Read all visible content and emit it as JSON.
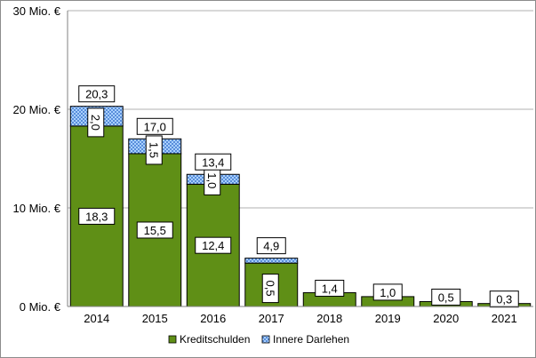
{
  "chart_data": {
    "type": "bar",
    "stacked": true,
    "categories": [
      "2014",
      "2015",
      "2016",
      "2017",
      "2018",
      "2019",
      "2020",
      "2021"
    ],
    "series": [
      {
        "name": "Kreditschulden",
        "values": [
          18.3,
          15.5,
          12.4,
          4.4,
          1.4,
          1.0,
          0.5,
          0.3
        ],
        "color": "#5f8f16"
      },
      {
        "name": "Innere Darlehen",
        "values": [
          2.0,
          1.5,
          1.0,
          0.5,
          0,
          0,
          0,
          0
        ],
        "color": "#7fb6ff"
      }
    ],
    "totals": [
      20.3,
      17.0,
      13.4,
      4.9,
      1.4,
      1.0,
      0.5,
      0.3
    ],
    "segment_labels": {
      "Kreditschulden": [
        "18,3",
        "15,5",
        "12,4",
        "",
        "",
        "",
        "",
        ""
      ],
      "Innere Darlehen": [
        "2,0",
        "1,5",
        "1,0",
        "0,5",
        "",
        "",
        "",
        ""
      ]
    },
    "total_labels": [
      "20,3",
      "17,0",
      "13,4",
      "4,9",
      "1,4",
      "1,0",
      "0,5",
      "0,3"
    ],
    "y_ticks": [
      {
        "value": 0,
        "label": "0 Mio. €"
      },
      {
        "value": 10,
        "label": "10 Mio. €"
      },
      {
        "value": 20,
        "label": "20 Mio. €"
      },
      {
        "value": 30,
        "label": "30 Mio. €"
      }
    ],
    "ylim": [
      0,
      30
    ],
    "grid": true,
    "legend_position": "bottom"
  }
}
